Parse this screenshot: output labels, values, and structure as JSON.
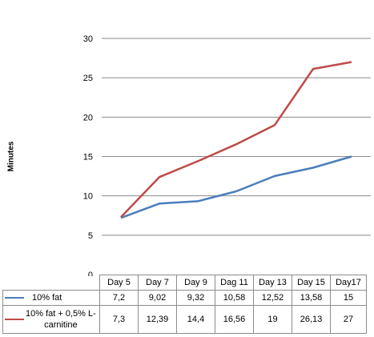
{
  "chart_data": {
    "type": "line",
    "ylabel": "Minutes",
    "ylim": [
      0,
      30
    ],
    "yticks": [
      "0",
      "5",
      "10",
      "15",
      "20",
      "25",
      "30"
    ],
    "categories": [
      "Day 5",
      "Day 7",
      "Day 9",
      "Dag 11",
      "Day 13",
      "Day 15",
      "Day17"
    ],
    "series": [
      {
        "name": "10% fat",
        "color": "#4a7ebb",
        "values": [
          7.2,
          9.02,
          9.32,
          10.58,
          12.52,
          13.58,
          15
        ],
        "labels": [
          "7,2",
          "9,02",
          "9,32",
          "10,58",
          "12,52",
          "13,58",
          "15"
        ]
      },
      {
        "name": "10% fat + 0,5% L-carnitine",
        "name_lines": [
          "10% fat + 0,5% L-",
          "carnitine"
        ],
        "color": "#be4b48",
        "values": [
          7.3,
          12.39,
          14.4,
          16.56,
          19,
          26.13,
          27
        ],
        "labels": [
          "7,3",
          "12,39",
          "14,4",
          "16,56",
          "19",
          "26,13",
          "27"
        ]
      }
    ],
    "grid": true,
    "legend": "data-table"
  }
}
